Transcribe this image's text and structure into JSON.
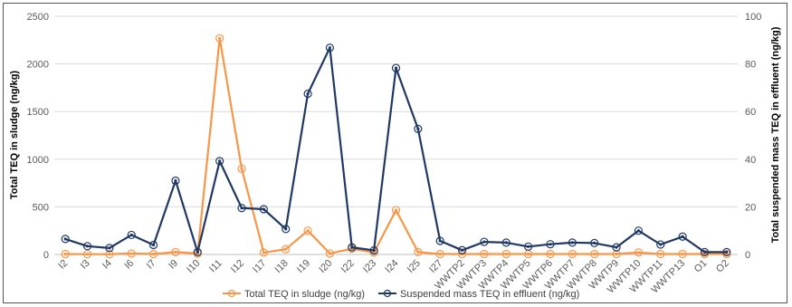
{
  "chart_data": {
    "type": "line",
    "categories": [
      "I2",
      "I3",
      "I4",
      "I6",
      "I7",
      "I9",
      "I10",
      "I11",
      "I12",
      "I17",
      "I18",
      "I19",
      "I20",
      "I22",
      "I23",
      "I24",
      "I25",
      "I27",
      "WWTP2",
      "WWTP3",
      "WWTP4",
      "WWTP5",
      "WWTP6",
      "WWTP7",
      "WWTP8",
      "WWTP9",
      "WWTP10",
      "WWTP11",
      "WWTP13",
      "O1",
      "O2"
    ],
    "ylabel": "Total TEQ in sludge (ng/kg)",
    "y2label": "Total suspended mass TEQ in effluent (ng/kg)",
    "ylim": [
      0,
      2500
    ],
    "y2lim": [
      0,
      100
    ],
    "yticks": [
      "0",
      "500",
      "1000",
      "1500",
      "2000",
      "2500"
    ],
    "y2ticks": [
      "0",
      "20",
      "40",
      "60",
      "80",
      "100"
    ],
    "grid": true,
    "legend_position": "bottom",
    "series": [
      {
        "name": "Total TEQ in sludge (ng/kg)",
        "axis": "left",
        "color": "#F79646",
        "values": [
          5,
          3,
          3,
          10,
          5,
          25,
          10,
          2270,
          900,
          20,
          55,
          250,
          10,
          60,
          20,
          465,
          25,
          5,
          5,
          5,
          5,
          5,
          5,
          5,
          5,
          5,
          20,
          5,
          5,
          5,
          5
        ]
      },
      {
        "name": "Suspended mass TEQ in effluent (ng/kg)",
        "axis": "right",
        "color": "#1F3864",
        "values": [
          6.5,
          3.5,
          2.7,
          8.2,
          4.0,
          31.0,
          1.0,
          39.2,
          19.5,
          19.0,
          10.7,
          67.5,
          86.8,
          3.0,
          1.7,
          78.3,
          52.7,
          5.7,
          1.8,
          5.3,
          5.0,
          3.3,
          4.3,
          5.0,
          4.8,
          3.0,
          10.0,
          4.2,
          7.5,
          1.0,
          1.0
        ]
      }
    ]
  }
}
